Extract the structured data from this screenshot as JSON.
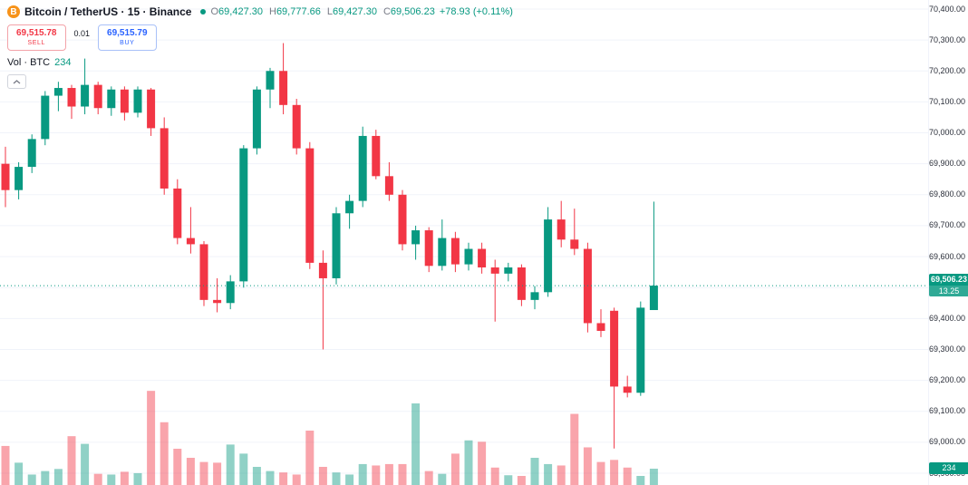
{
  "header": {
    "logo_letter": "B",
    "title": "Bitcoin / TetherUS · 15 · Binance",
    "ohlc": [
      {
        "label": "O",
        "value": "69,427.30"
      },
      {
        "label": "H",
        "value": "69,777.66"
      },
      {
        "label": "L",
        "value": "69,427.30"
      },
      {
        "label": "C",
        "value": "69,506.23"
      }
    ],
    "change": "+78.93 (+0.11%)",
    "sell_price": "69,515.78",
    "sell_label": "SELL",
    "spread": "0.01",
    "buy_price": "69,515.79",
    "buy_label": "BUY",
    "vol_label": "Vol · BTC",
    "vol_value": "234"
  },
  "axis": {
    "ticks": [
      "70,400.00",
      "70,300.00",
      "70,200.00",
      "70,100.00",
      "70,000.00",
      "69,900.00",
      "69,800.00",
      "69,700.00",
      "69,600.00",
      "69,500.00",
      "69,400.00",
      "69,300.00",
      "69,200.00",
      "69,100.00",
      "69,000.00",
      "68,900.00"
    ],
    "price_badge": {
      "price": "69,506.23",
      "countdown": "13.25"
    },
    "volume_badge": "234"
  },
  "colors": {
    "up": "#089981",
    "down": "#f23645",
    "volume_up": "rgba(8,153,129,0.45)",
    "volume_down": "rgba(242,54,69,0.45)",
    "grid": "#f0f3fa",
    "buy_blue": "#2962ff",
    "sell_red": "#f23645",
    "bitcoin_orange": "#f7931a"
  },
  "chart_data": {
    "type": "candlestick",
    "title": "Bitcoin / TetherUS · 15 · Binance",
    "interval_minutes": 15,
    "last_price": 69506.23,
    "last_volume": 234,
    "price_range": [
      68900,
      70400
    ],
    "grid": true,
    "legend_position": "top-left",
    "series_note": "candles are [open, high, low, close, volumeBTC], oldest to newest",
    "candles": [
      [
        69900,
        69955,
        69760,
        69815,
        560
      ],
      [
        69815,
        69905,
        69785,
        69890,
        320
      ],
      [
        69890,
        69995,
        69870,
        69980,
        150
      ],
      [
        69980,
        70135,
        69960,
        70120,
        200
      ],
      [
        70120,
        70165,
        70070,
        70145,
        230
      ],
      [
        70145,
        70155,
        70045,
        70085,
        700
      ],
      [
        70085,
        70240,
        70060,
        70155,
        590
      ],
      [
        70155,
        70165,
        70060,
        70080,
        160
      ],
      [
        70080,
        70150,
        70055,
        70140,
        150
      ],
      [
        70140,
        70150,
        70040,
        70065,
        190
      ],
      [
        70065,
        70150,
        70050,
        70140,
        170
      ],
      [
        70140,
        70145,
        69990,
        70015,
        1350
      ],
      [
        70015,
        70050,
        69800,
        69820,
        900
      ],
      [
        69820,
        69850,
        69640,
        69660,
        520
      ],
      [
        69660,
        69760,
        69610,
        69640,
        390
      ],
      [
        69640,
        69650,
        69440,
        69460,
        330
      ],
      [
        69460,
        69530,
        69420,
        69450,
        320
      ],
      [
        69450,
        69540,
        69430,
        69520,
        580
      ],
      [
        69520,
        69960,
        69500,
        69950,
        450
      ],
      [
        69950,
        70150,
        69930,
        70140,
        260
      ],
      [
        70140,
        70210,
        70080,
        70200,
        200
      ],
      [
        70200,
        70290,
        70060,
        70090,
        180
      ],
      [
        70090,
        70110,
        69930,
        69950,
        150
      ],
      [
        69950,
        69970,
        69560,
        69580,
        780
      ],
      [
        69580,
        69620,
        69300,
        69530,
        260
      ],
      [
        69530,
        69760,
        69510,
        69740,
        180
      ],
      [
        69740,
        69800,
        69690,
        69780,
        150
      ],
      [
        69780,
        70020,
        69760,
        69990,
        300
      ],
      [
        69990,
        70010,
        69850,
        69860,
        280
      ],
      [
        69860,
        69905,
        69780,
        69800,
        300
      ],
      [
        69800,
        69815,
        69620,
        69640,
        300
      ],
      [
        69640,
        69700,
        69590,
        69685,
        1170
      ],
      [
        69685,
        69695,
        69550,
        69570,
        200
      ],
      [
        69570,
        69720,
        69555,
        69660,
        160
      ],
      [
        69660,
        69680,
        69550,
        69575,
        450
      ],
      [
        69575,
        69645,
        69555,
        69625,
        640
      ],
      [
        69625,
        69645,
        69545,
        69565,
        620
      ],
      [
        69565,
        69590,
        69390,
        69545,
        250
      ],
      [
        69545,
        69580,
        69520,
        69565,
        140
      ],
      [
        69565,
        69575,
        69440,
        69460,
        130
      ],
      [
        69460,
        69505,
        69430,
        69485,
        390
      ],
      [
        69485,
        69760,
        69470,
        69720,
        300
      ],
      [
        69720,
        69780,
        69630,
        69655,
        280
      ],
      [
        69655,
        69755,
        69605,
        69625,
        1020
      ],
      [
        69625,
        69645,
        69355,
        69385,
        540
      ],
      [
        69385,
        69430,
        69340,
        69360,
        330
      ],
      [
        69425,
        69435,
        68980,
        69180,
        360
      ],
      [
        69180,
        69215,
        69145,
        69160,
        250
      ],
      [
        69160,
        69455,
        69150,
        69435,
        130
      ],
      [
        69427.3,
        69777.66,
        69427.3,
        69506.23,
        234
      ]
    ]
  }
}
